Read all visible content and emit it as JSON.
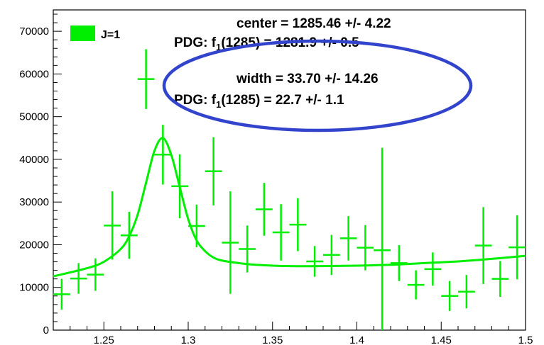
{
  "chart_data": {
    "type": "scatter",
    "title": "",
    "xlabel": "",
    "ylabel": "",
    "xlim": [
      1.22,
      1.5
    ],
    "ylim": [
      0,
      75000
    ],
    "x_ticks": [
      "1.25",
      "1.3",
      "1.35",
      "1.4",
      "1.45",
      "1.5"
    ],
    "y_ticks": [
      "0",
      "10000",
      "20000",
      "30000",
      "40000",
      "50000",
      "60000",
      "70000"
    ],
    "grid": false,
    "legend": {
      "placement": "top-left",
      "entries": [
        {
          "label": "J=1",
          "color": "#00ee00"
        }
      ]
    },
    "series": [
      {
        "name": "J=1",
        "style": "points-with-errors",
        "color": "#00ee00",
        "x": [
          1.225,
          1.235,
          1.245,
          1.255,
          1.265,
          1.275,
          1.285,
          1.295,
          1.305,
          1.315,
          1.325,
          1.335,
          1.345,
          1.355,
          1.365,
          1.375,
          1.385,
          1.395,
          1.405,
          1.415,
          1.425,
          1.435,
          1.445,
          1.455,
          1.465,
          1.475,
          1.485,
          1.495
        ],
        "y": [
          8400,
          12100,
          13000,
          24500,
          22200,
          58800,
          41100,
          33700,
          24400,
          37200,
          20500,
          19000,
          28300,
          22900,
          24700,
          16100,
          17600,
          21500,
          19300,
          18700,
          15700,
          10600,
          14300,
          8000,
          9000,
          19800,
          12000,
          19400
        ],
        "x_error": 0.005,
        "y_error": [
          3600,
          3600,
          3800,
          8000,
          5500,
          7000,
          7000,
          7500,
          5000,
          8000,
          12000,
          5500,
          6200,
          6600,
          6200,
          3600,
          4700,
          5200,
          5300,
          24000,
          4200,
          3400,
          3900,
          3500,
          3900,
          9000,
          4200,
          7500
        ]
      },
      {
        "name": "fit",
        "style": "line",
        "color": "#00ee00",
        "x": [
          1.22,
          1.24,
          1.25,
          1.26,
          1.265,
          1.27,
          1.275,
          1.28,
          1.285,
          1.29,
          1.295,
          1.3,
          1.305,
          1.31,
          1.315,
          1.32,
          1.33,
          1.34,
          1.36,
          1.38,
          1.4,
          1.42,
          1.44,
          1.46,
          1.48,
          1.5
        ],
        "y": [
          12600,
          14500,
          16000,
          19000,
          22000,
          27000,
          34500,
          42000,
          45000,
          41000,
          33500,
          26000,
          21000,
          18500,
          17000,
          16300,
          15700,
          15300,
          15000,
          15000,
          15100,
          15300,
          15700,
          16100,
          16700,
          17400
        ]
      }
    ],
    "annotations": {
      "center": "center = 1285.46 +/- 4.22",
      "pdg_center_prefix": "PDG: f",
      "pdg_center_sub": "1",
      "pdg_center_suffix": "(1285) = 1281.9   +/-  0.5",
      "width": "width  =  33.70 +/- 14.26",
      "pdg_width_prefix": "PDG: f",
      "pdg_width_sub": "1",
      "pdg_width_suffix": "(1285) =  22.7   +/-  1.1",
      "highlight_color": "#3344cc"
    }
  }
}
